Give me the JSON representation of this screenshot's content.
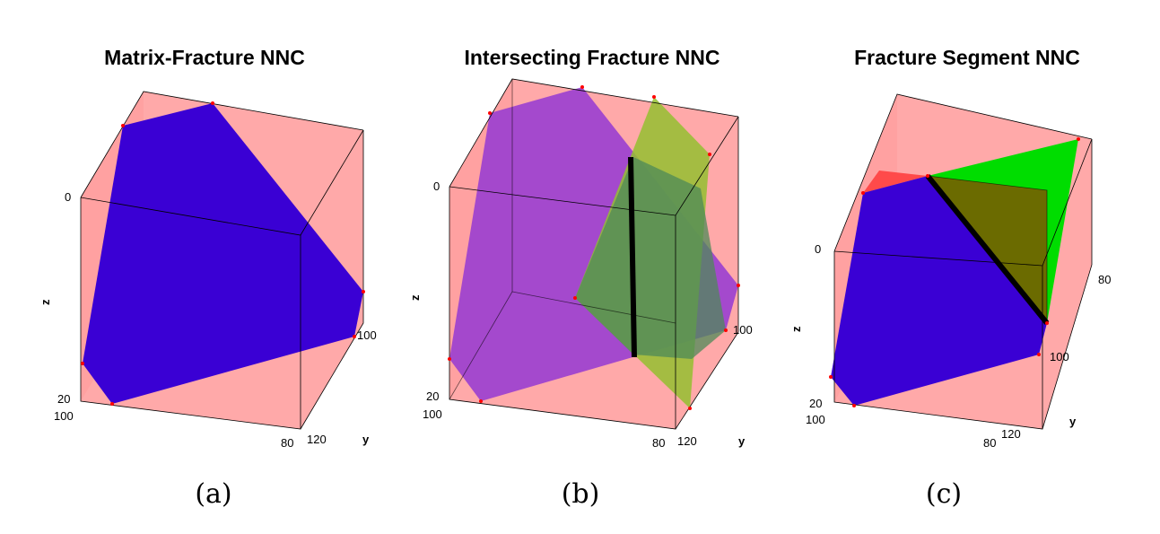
{
  "colors": {
    "background": "#ffffff",
    "cube_face": "#ff9a9a",
    "matrix_fracture": "#3a00d4",
    "intersecting_fracture_a": "#9a3ed0",
    "intersecting_fracture_b": "#94c030",
    "fracture_segment_blue": "#3a00d4",
    "fracture_segment_green": "#00dd00",
    "fracture_segment_overlap": "#6b6b00",
    "nnc_line": "#000000",
    "vertex_dot": "#ff0000"
  },
  "panels": [
    {
      "title": "Matrix-Fracture NNC",
      "caption": "(a)",
      "z_tick_top": "0",
      "z_tick_bottom": "20",
      "x_tick_left": "100",
      "x_tick_right": "80",
      "y_tick_near": "100",
      "y_tick_far": "120",
      "z_label": "z",
      "y_label": "y"
    },
    {
      "title": "Intersecting Fracture NNC",
      "caption": "(b)",
      "z_tick_top": "0",
      "z_tick_bottom": "20",
      "x_tick_left": "100",
      "x_tick_right": "80",
      "y_tick_near": "100",
      "y_tick_far": "120",
      "z_label": "z",
      "y_label": "y"
    },
    {
      "title": "Fracture Segment NNC",
      "caption": "(c)",
      "z_tick_top": "0",
      "z_tick_bottom": "20",
      "x_tick_left": "100",
      "x_tick_right": "80",
      "y_tick_near": "100",
      "y_tick_far": "120",
      "y_tick_extra": "80",
      "z_label": "z",
      "y_label": "y"
    }
  ]
}
